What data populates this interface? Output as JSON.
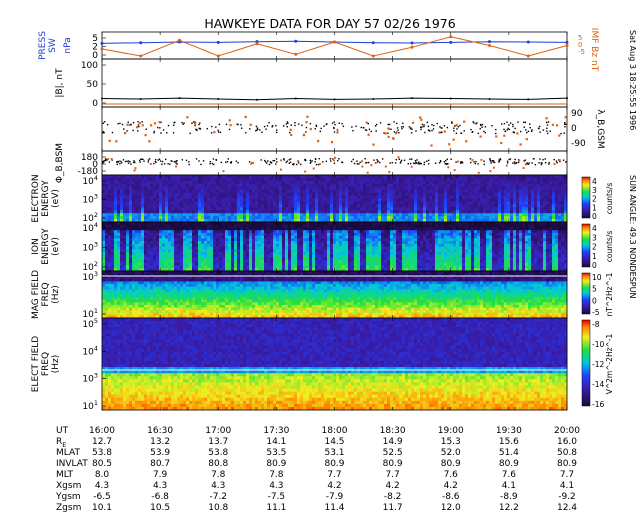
{
  "chart_data": {
    "type": "heatmap",
    "title": "HAWKEYE DATA FOR DAY  57 02/26 1976",
    "side_text": "Sat Aug  3 18:25:55 1996",
    "sun_angle": "SUN ANGLE:  49.3 NONDESPUN",
    "time_ticks": [
      "16:00",
      "16:30",
      "17:00",
      "17:30",
      "18:00",
      "18:30",
      "19:00",
      "19:30",
      "20:00"
    ],
    "xlim": [
      "16:00",
      "20:00"
    ],
    "panels": [
      {
        "name": "press",
        "ylabel": [
          "PRESS",
          "SW"
        ],
        "units": "nPa",
        "ylabel_color": "#1f3fd0",
        "right_label": "IMF Bz nT",
        "right_color": "#e06010",
        "right_ticks": [
          "5",
          "0",
          "-5"
        ],
        "ticks": [
          "5",
          "2",
          "0"
        ],
        "ylim": [
          -1,
          5
        ]
      },
      {
        "name": "b_total",
        "ylabel": "|B|, nT",
        "ticks": [
          "100",
          "50",
          "0"
        ],
        "ylim": [
          0,
          100
        ]
      },
      {
        "name": "lambda",
        "right_label": "λ_B,GSM",
        "ticks_right": [
          "90",
          "0",
          "-90"
        ],
        "ylim": [
          -90,
          90
        ]
      },
      {
        "name": "phi",
        "ylabel": "Φ_B,BSM",
        "ticks": [
          "180",
          "0",
          "-180"
        ],
        "ylim": [
          -180,
          180
        ]
      },
      {
        "name": "electron",
        "ylabel": [
          "ELECTRON",
          "ENERGY",
          "(eV)"
        ],
        "ticks": [
          "10^4",
          "10^3",
          "10^2"
        ],
        "colorbar_ticks": [
          "4",
          "3",
          "2",
          "1",
          "0"
        ],
        "colorbar_label": "counts/s"
      },
      {
        "name": "ion",
        "ylabel": [
          "ION",
          "ENERGY",
          "(eV)"
        ],
        "ticks": [
          "10^4",
          "10^3",
          "10^2"
        ],
        "colorbar_ticks": [
          "4",
          "3",
          "2",
          "1",
          "0"
        ],
        "colorbar_label": "counts/s"
      },
      {
        "name": "mag_field",
        "ylabel": [
          "MAG FIELD",
          "FREQ",
          "(Hz)"
        ],
        "ticks": [
          "10^3",
          "10^1"
        ],
        "colorbar_ticks": [
          "10",
          "5",
          "0",
          "-5"
        ],
        "colorbar_label": "nT^2Hz^-1"
      },
      {
        "name": "elec_field",
        "ylabel": [
          "ELECT FIELD",
          "FREQ",
          "(Hz)"
        ],
        "ticks": [
          "10^5",
          "10^4",
          "10^3",
          "10^1"
        ],
        "colorbar_ticks": [
          "-8",
          "-10",
          "-12",
          "-14",
          "-16"
        ],
        "colorbar_label": "V^2m^-2Hz^-1"
      }
    ],
    "series": [
      {
        "name": "PRESS SW",
        "panel": "press",
        "color": "#1f3fd0",
        "values": [
          2.6,
          2.8,
          3.0,
          2.9,
          3.1,
          3.2,
          3.0,
          2.8,
          2.7,
          2.9,
          3.1,
          3.0,
          2.9
        ]
      },
      {
        "name": "IMF Bz",
        "panel": "press",
        "color": "#e06010",
        "values": [
          1.0,
          -1.0,
          3.5,
          -1.0,
          2.5,
          -0.5,
          3.0,
          -1.0,
          1.5,
          4.5,
          2.0,
          -1.0,
          2.0
        ]
      },
      {
        "name": "|B|",
        "panel": "b_total",
        "color": "#000000",
        "values": [
          13,
          12,
          14,
          12,
          10,
          13,
          11,
          12,
          14,
          13,
          12,
          11,
          14
        ]
      }
    ],
    "orbit_table": {
      "rows": [
        {
          "label": "UT",
          "values": [
            "16:00",
            "16:30",
            "17:00",
            "17:30",
            "18:00",
            "18:30",
            "19:00",
            "19:30",
            "20:00"
          ]
        },
        {
          "label": "R_E",
          "values": [
            "12.7",
            "13.2",
            "13.7",
            "14.1",
            "14.5",
            "14.9",
            "15.3",
            "15.6",
            "16.0"
          ]
        },
        {
          "label": "MLAT",
          "values": [
            "53.8",
            "53.9",
            "53.8",
            "53.5",
            "53.1",
            "52.5",
            "52.0",
            "51.4",
            "50.8"
          ]
        },
        {
          "label": "INVLAT",
          "values": [
            "80.5",
            "80.7",
            "80.8",
            "80.9",
            "80.9",
            "80.9",
            "80.9",
            "80.9",
            "80.9"
          ]
        },
        {
          "label": "MLT",
          "values": [
            "8.0",
            "7.9",
            "7.8",
            "7.8",
            "7.7",
            "7.7",
            "7.6",
            "7.6",
            "7.7"
          ]
        },
        {
          "label": "Xgsm",
          "values": [
            "4.3",
            "4.3",
            "4.3",
            "4.3",
            "4.2",
            "4.2",
            "4.2",
            "4.1",
            "4.1"
          ]
        },
        {
          "label": "Ygsm",
          "values": [
            "-6.5",
            "-6.8",
            "-7.2",
            "-7.5",
            "-7.9",
            "-8.2",
            "-8.6",
            "-8.9",
            "-9.2"
          ]
        },
        {
          "label": "Zgsm",
          "values": [
            "10.1",
            "10.5",
            "10.8",
            "11.1",
            "11.4",
            "11.7",
            "12.0",
            "12.2",
            "12.4"
          ]
        }
      ]
    }
  }
}
